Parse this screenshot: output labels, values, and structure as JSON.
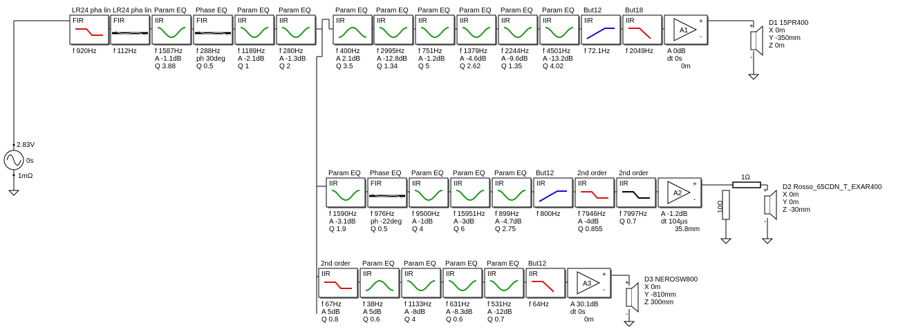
{
  "source": {
    "voltage": "2.83V",
    "delay": "0s",
    "resistance": "1mΩ"
  },
  "colors": {
    "green": "#1a9a1a",
    "red": "#e01010",
    "blue": "#1010d0",
    "d1": "#e01010",
    "d2": "#1a9a1a",
    "d3": "#1010d0"
  },
  "rows": [
    {
      "id": "row1",
      "blocks": [
        {
          "title": "LR24 pha lin",
          "tag": "FIR",
          "icon": "lowpass",
          "color": "red",
          "params": [
            "f  920Hz"
          ]
        },
        {
          "title": "LR24 pha lin",
          "tag": "FIR",
          "icon": "flat",
          "color": "black",
          "params": [
            "f  112Hz"
          ]
        },
        {
          "title": "Param EQ",
          "tag": "IIR",
          "icon": "dip",
          "color": "green",
          "params": [
            "f  1587Hz",
            "A  -1.1dB",
            "Q  3.88"
          ]
        },
        {
          "title": "Phase EQ",
          "tag": "FIR",
          "icon": "flat",
          "color": "black",
          "params": [
            "f  288Hz",
            "ph  30deg",
            "Q  0.5"
          ]
        },
        {
          "title": "Param EQ",
          "tag": "IIR",
          "icon": "dip",
          "color": "green",
          "params": [
            "f  1189Hz",
            "A  -2.1dB",
            "Q  1"
          ]
        },
        {
          "title": "Param EQ",
          "tag": "IIR",
          "icon": "dip",
          "color": "green",
          "params": [
            "f  280Hz",
            "A  -1.3dB",
            "Q  2"
          ]
        },
        {
          "title": "Param EQ",
          "tag": "IIR",
          "icon": "bump",
          "color": "green",
          "params": [
            "f  400Hz",
            "A  2.1dB",
            "Q  3.5"
          ]
        },
        {
          "title": "Param EQ",
          "tag": "IIR",
          "icon": "dip",
          "color": "green",
          "params": [
            "f  2995Hz",
            "A  -12.8dB",
            "Q  1.34"
          ]
        },
        {
          "title": "Param EQ",
          "tag": "IIR",
          "icon": "dip",
          "color": "green",
          "params": [
            "f  751Hz",
            "A  -1.2dB",
            "Q  5"
          ]
        },
        {
          "title": "Param EQ",
          "tag": "IIR",
          "icon": "dip",
          "color": "green",
          "params": [
            "f  1379Hz",
            "A  -4.6dB",
            "Q  2.62"
          ]
        },
        {
          "title": "Param EQ",
          "tag": "IIR",
          "icon": "dip",
          "color": "green",
          "params": [
            "f  2244Hz",
            "A  -9.6dB",
            "Q  1.35"
          ]
        },
        {
          "title": "Param EQ",
          "tag": "IIR",
          "icon": "dip",
          "color": "green",
          "params": [
            "f  4501Hz",
            "A  -13.2dB",
            "Q  4.02"
          ]
        },
        {
          "title": "But12",
          "tag": "IIR",
          "icon": "highpass",
          "color": "blue",
          "params": [
            "f  72.1Hz"
          ]
        },
        {
          "title": "But18",
          "tag": "IIR",
          "icon": "lowpass2",
          "color": "red",
          "params": [
            "f  2049Hz"
          ]
        }
      ],
      "amp": {
        "label": "A1",
        "params": [
          "A  0dB",
          "dt 0s",
          "0m"
        ]
      },
      "speaker": {
        "name": "D1 15PR400",
        "color": "d1",
        "coords": [
          "X 0m",
          "Y -350mm",
          "Z 0m"
        ]
      }
    },
    {
      "id": "row2",
      "blocks": [
        {
          "title": "Param EQ",
          "tag": "IIR",
          "icon": "dip",
          "color": "green",
          "params": [
            "f  1590Hz",
            "A  -3.1dB",
            "Q  1.9"
          ]
        },
        {
          "title": "Phase EQ",
          "tag": "FIR",
          "icon": "flat",
          "color": "black",
          "params": [
            "f  976Hz",
            "ph  -22deg",
            "Q  0.5"
          ]
        },
        {
          "title": "Param EQ",
          "tag": "IIR",
          "icon": "dip",
          "color": "green",
          "params": [
            "f  9500Hz",
            "A  -1dB",
            "Q  4"
          ]
        },
        {
          "title": "Param EQ",
          "tag": "IIR",
          "icon": "dip",
          "color": "green",
          "params": [
            "f  15951Hz",
            "A  -3dB",
            "Q  6"
          ]
        },
        {
          "title": "Param EQ",
          "tag": "IIR",
          "icon": "dip",
          "color": "green",
          "params": [
            "f  899Hz",
            "A  -4.7dB",
            "Q  2.75"
          ]
        },
        {
          "title": "But12",
          "tag": "IIR",
          "icon": "highpass",
          "color": "blue",
          "params": [
            "f  800Hz"
          ]
        },
        {
          "title": "2nd order",
          "tag": "IIR",
          "icon": "lowpass",
          "color": "red",
          "params": [
            "f  7946Hz",
            "A  -4dB",
            "Q  0.855"
          ]
        },
        {
          "title": "2nd order",
          "tag": "IIR",
          "icon": "lowpass",
          "color": "black",
          "params": [
            "f  7997Hz",
            "Q  0.7"
          ]
        }
      ],
      "amp": {
        "label": "A2",
        "params": [
          "A  -1.2dB",
          "dt 104µs",
          "35.8mm"
        ]
      },
      "resistor_series": "1Ω",
      "resistor_shunt": "10Ω",
      "speaker": {
        "name": "D2 Rosso_65CDN_T_EXAR400",
        "color": "d2",
        "coords": [
          "X 0m",
          "Y 0m",
          "Z -30mm"
        ]
      }
    },
    {
      "id": "row3",
      "blocks": [
        {
          "title": "2nd order",
          "tag": "IIR",
          "icon": "lowpass",
          "color": "red",
          "params": [
            "f  67Hz",
            "A  5dB",
            "Q  0.8"
          ]
        },
        {
          "title": "Param EQ",
          "tag": "IIR",
          "icon": "bump",
          "color": "green",
          "params": [
            "f  38Hz",
            "A  5dB",
            "Q  0.6"
          ]
        },
        {
          "title": "Param EQ",
          "tag": "IIR",
          "icon": "dip",
          "color": "green",
          "params": [
            "f  1133Hz",
            "A  -8dB",
            "Q  4"
          ]
        },
        {
          "title": "Param EQ",
          "tag": "IIR",
          "icon": "dip",
          "color": "green",
          "params": [
            "f  631Hz",
            "A  -8.3dB",
            "Q  0.6"
          ]
        },
        {
          "title": "Param EQ",
          "tag": "IIR",
          "icon": "dip",
          "color": "green",
          "params": [
            "f  531Hz",
            "A  -12dB",
            "Q  0.7"
          ]
        },
        {
          "title": "But12",
          "tag": "IIR",
          "icon": "lowpass2",
          "color": "red",
          "params": [
            "f  64Hz"
          ]
        }
      ],
      "amp": {
        "label": "A3",
        "params": [
          "A  30.1dB",
          "dt 0s",
          "0m"
        ]
      },
      "speaker": {
        "name": "D3 NEROSW800",
        "color": "d3",
        "coords": [
          "X 0m",
          "Y -810mm",
          "Z 300mm"
        ]
      }
    }
  ]
}
